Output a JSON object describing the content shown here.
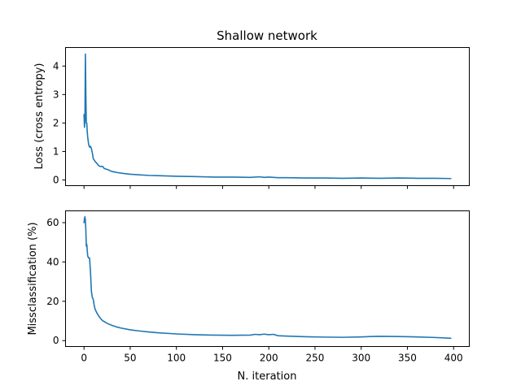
{
  "chart_data": [
    {
      "type": "line",
      "title": "Shallow network",
      "xlabel": "",
      "ylabel": "Loss (cross entropy)",
      "xlim": [
        -20,
        417
      ],
      "ylim": [
        -0.2,
        4.65
      ],
      "xticks": [
        0,
        50,
        100,
        150,
        200,
        250,
        300,
        350,
        400
      ],
      "xtick_labels_visible": false,
      "yticks": [
        0,
        1,
        2,
        3,
        4
      ],
      "grid": false,
      "series": [
        {
          "color": "#1f77b4",
          "x": [
            0,
            0.5,
            1,
            1.5,
            2,
            2.5,
            3,
            3.5,
            4,
            5,
            6,
            7,
            8,
            9,
            10,
            11,
            12,
            14,
            16,
            18,
            20,
            22,
            24,
            26,
            28,
            30,
            33,
            36,
            40,
            45,
            50,
            55,
            60,
            70,
            80,
            90,
            100,
            120,
            140,
            160,
            180,
            190,
            195,
            200,
            205,
            210,
            220,
            240,
            260,
            280,
            300,
            320,
            340,
            360,
            380,
            397
          ],
          "y": [
            2.3,
            1.85,
            2.1,
            4.42,
            3.0,
            2.0,
            2.0,
            1.7,
            1.5,
            1.25,
            1.15,
            1.18,
            1.1,
            0.95,
            0.75,
            0.7,
            0.65,
            0.58,
            0.5,
            0.47,
            0.48,
            0.4,
            0.38,
            0.36,
            0.33,
            0.3,
            0.28,
            0.26,
            0.24,
            0.22,
            0.2,
            0.19,
            0.18,
            0.16,
            0.15,
            0.14,
            0.13,
            0.12,
            0.1,
            0.1,
            0.09,
            0.11,
            0.09,
            0.1,
            0.09,
            0.08,
            0.08,
            0.07,
            0.07,
            0.06,
            0.07,
            0.06,
            0.07,
            0.06,
            0.06,
            0.05
          ]
        }
      ]
    },
    {
      "type": "line",
      "title": "",
      "xlabel": "N. iteration",
      "ylabel": "Missclassification (%)",
      "xlim": [
        -20,
        417
      ],
      "ylim": [
        -3,
        66
      ],
      "xticks": [
        0,
        50,
        100,
        150,
        200,
        250,
        300,
        350,
        400
      ],
      "yticks": [
        0,
        20,
        40,
        60
      ],
      "grid": false,
      "series": [
        {
          "color": "#1f77b4",
          "x": [
            0,
            0.5,
            1,
            1.5,
            2,
            2.5,
            3,
            3.5,
            4,
            5,
            6,
            7,
            8,
            9,
            10,
            11,
            12,
            14,
            16,
            18,
            20,
            25,
            30,
            35,
            40,
            50,
            60,
            70,
            80,
            100,
            120,
            140,
            160,
            180,
            185,
            190,
            195,
            200,
            205,
            210,
            220,
            240,
            260,
            280,
            300,
            310,
            320,
            340,
            360,
            380,
            397
          ],
          "y": [
            60,
            62,
            63,
            61,
            56,
            48,
            49,
            46,
            43,
            42,
            42,
            35,
            25,
            22,
            21,
            18,
            16,
            14,
            12.5,
            11.2,
            10.2,
            8.8,
            7.8,
            7.0,
            6.4,
            5.5,
            4.9,
            4.4,
            4.0,
            3.4,
            3.0,
            2.8,
            2.7,
            2.8,
            3.2,
            3.0,
            3.3,
            3.0,
            3.2,
            2.5,
            2.3,
            2.0,
            1.8,
            1.7,
            1.9,
            2.1,
            2.2,
            2.1,
            1.9,
            1.6,
            1.2
          ]
        }
      ]
    }
  ]
}
